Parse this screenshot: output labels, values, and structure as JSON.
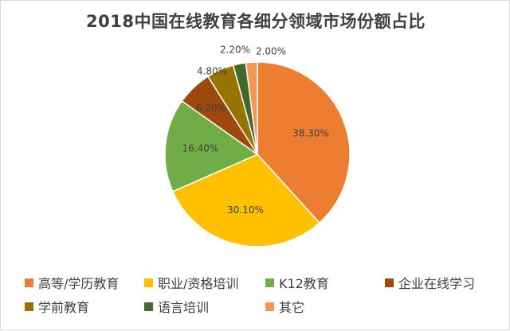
{
  "chart_data": {
    "type": "pie",
    "title": "2018中国在线教育各细分领域市场份额占比",
    "legend_position": "bottom",
    "categories": [
      "高等/学历教育",
      "职业/资格培训",
      "K12教育",
      "企业在线学习",
      "学前教育",
      "语言培训",
      "其它"
    ],
    "values": [
      38.3,
      30.1,
      16.4,
      6.2,
      4.8,
      2.2,
      2.0
    ],
    "value_labels": [
      "38.30%",
      "30.10%",
      "16.40%",
      "6.20%",
      "4.80%",
      "2.20%",
      "2.00%"
    ],
    "colors": [
      "#ed7d31",
      "#ffc000",
      "#70ad47",
      "#9e480e",
      "#997300",
      "#43682b",
      "#f1975a"
    ]
  }
}
